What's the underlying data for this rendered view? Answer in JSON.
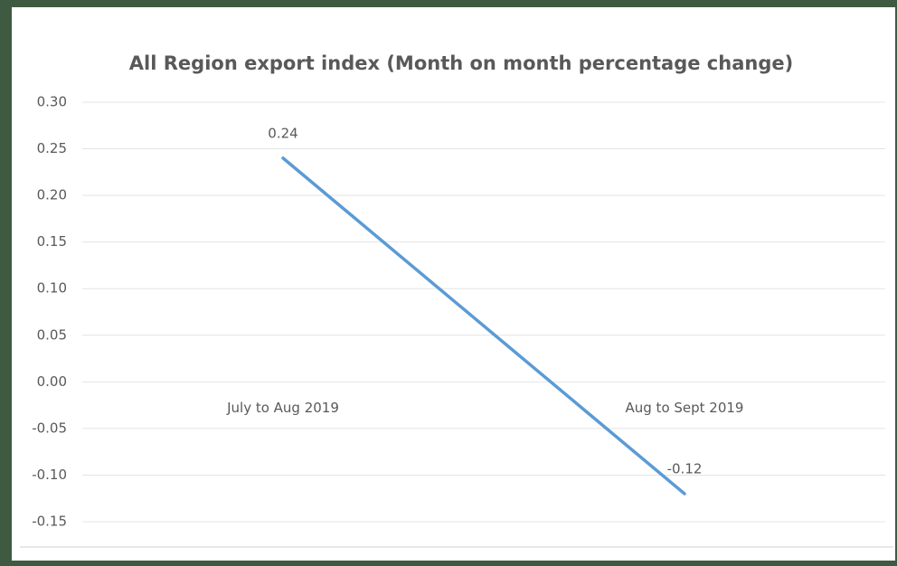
{
  "chart_data": {
    "type": "line",
    "title": "All Region export index (Month on month  percentage change)",
    "categories": [
      "July to Aug 2019",
      "Aug to Sept 2019"
    ],
    "series": [
      {
        "name": "All Region export index",
        "color": "#5b9bd5",
        "values": [
          0.24,
          -0.12
        ]
      }
    ],
    "ylim": [
      -0.15,
      0.3
    ],
    "yticks": [
      {
        "value": -0.15,
        "label": "-0.15"
      },
      {
        "value": -0.1,
        "label": "-0.10"
      },
      {
        "value": -0.05,
        "label": "-0.05"
      },
      {
        "value": 0,
        "label": "0.00"
      },
      {
        "value": 0.05,
        "label": "0.05"
      },
      {
        "value": 0.1,
        "label": "0.10"
      },
      {
        "value": 0.15,
        "label": "0.15"
      },
      {
        "value": 0.2,
        "label": "0.20"
      },
      {
        "value": 0.25,
        "label": "0.25"
      },
      {
        "value": 0.3,
        "label": "0.30"
      }
    ],
    "grid": true,
    "data_labels": true
  }
}
